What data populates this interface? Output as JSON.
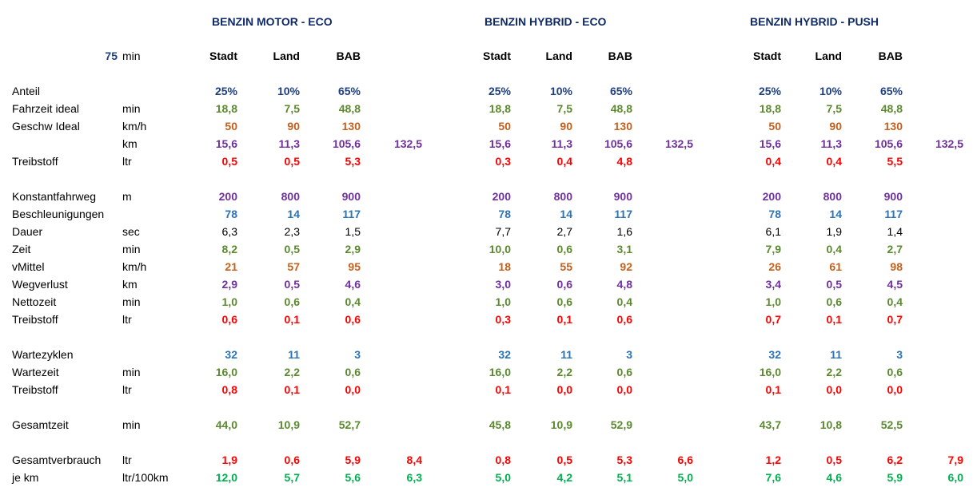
{
  "colors": {
    "navy": "#1f3f7f",
    "olive": "#5b8a2e",
    "orange": "#c4601c",
    "purple": "#7030a0",
    "red": "#ff0000",
    "blue": "#2e74b5",
    "black": "#000000",
    "green": "#00b050"
  },
  "header": {
    "minutes_value": "75",
    "minutes_unit": "min",
    "sections": [
      {
        "title": "BENZIN MOTOR - ECO",
        "cols": [
          "Stadt",
          "Land",
          "BAB"
        ]
      },
      {
        "title": "BENZIN HYBRID - ECO",
        "cols": [
          "Stadt",
          "Land",
          "BAB"
        ]
      },
      {
        "title": "BENZIN HYBRID - PUSH",
        "cols": [
          "Stadt",
          "Land",
          "BAB"
        ]
      }
    ]
  },
  "rows": [
    {
      "label": "Anteil",
      "unit": "",
      "color": "navy",
      "bold": true,
      "values": [
        [
          "25%",
          "10%",
          "65%",
          ""
        ],
        [
          "25%",
          "10%",
          "65%",
          ""
        ],
        [
          "25%",
          "10%",
          "65%",
          ""
        ]
      ]
    },
    {
      "label": "Fahrzeit ideal",
      "unit": "min",
      "color": "olive",
      "bold": true,
      "values": [
        [
          "18,8",
          "7,5",
          "48,8",
          ""
        ],
        [
          "18,8",
          "7,5",
          "48,8",
          ""
        ],
        [
          "18,8",
          "7,5",
          "48,8",
          ""
        ]
      ]
    },
    {
      "label": "Geschw Ideal",
      "unit": "km/h",
      "color": "orange",
      "bold": true,
      "values": [
        [
          "50",
          "90",
          "130",
          ""
        ],
        [
          "50",
          "90",
          "130",
          ""
        ],
        [
          "50",
          "90",
          "130",
          ""
        ]
      ]
    },
    {
      "label": "",
      "unit": "km",
      "color": "purple",
      "bold": true,
      "values": [
        [
          "15,6",
          "11,3",
          "105,6",
          "132,5"
        ],
        [
          "15,6",
          "11,3",
          "105,6",
          "132,5"
        ],
        [
          "15,6",
          "11,3",
          "105,6",
          "132,5"
        ]
      ]
    },
    {
      "label": "Treibstoff",
      "unit": "ltr",
      "color": "red",
      "bold": true,
      "values": [
        [
          "0,5",
          "0,5",
          "5,3",
          ""
        ],
        [
          "0,3",
          "0,4",
          "4,8",
          ""
        ],
        [
          "0,4",
          "0,4",
          "5,5",
          ""
        ]
      ]
    },
    {
      "label": "Konstantfahrweg",
      "unit": "m",
      "color": "purple",
      "bold": true,
      "values": [
        [
          "200",
          "800",
          "900",
          ""
        ],
        [
          "200",
          "800",
          "900",
          ""
        ],
        [
          "200",
          "800",
          "900",
          ""
        ]
      ]
    },
    {
      "label": "Beschleunigungen",
      "unit": "",
      "color": "blue",
      "bold": true,
      "values": [
        [
          "78",
          "14",
          "117",
          ""
        ],
        [
          "78",
          "14",
          "117",
          ""
        ],
        [
          "78",
          "14",
          "117",
          ""
        ]
      ]
    },
    {
      "label": "Dauer",
      "unit": "sec",
      "color": "black",
      "bold": false,
      "values": [
        [
          "6,3",
          "2,3",
          "1,5",
          ""
        ],
        [
          "7,7",
          "2,7",
          "1,6",
          ""
        ],
        [
          "6,1",
          "1,9",
          "1,4",
          ""
        ]
      ]
    },
    {
      "label": "Zeit",
      "unit": "min",
      "color": "olive",
      "bold": true,
      "values": [
        [
          "8,2",
          "0,5",
          "2,9",
          ""
        ],
        [
          "10,0",
          "0,6",
          "3,1",
          ""
        ],
        [
          "7,9",
          "0,4",
          "2,7",
          ""
        ]
      ]
    },
    {
      "label": "vMittel",
      "unit": "km/h",
      "color": "orange",
      "bold": true,
      "values": [
        [
          "21",
          "57",
          "95",
          ""
        ],
        [
          "18",
          "55",
          "92",
          ""
        ],
        [
          "26",
          "61",
          "98",
          ""
        ]
      ]
    },
    {
      "label": "Wegverlust",
      "unit": "km",
      "color": "purple",
      "bold": true,
      "values": [
        [
          "2,9",
          "0,5",
          "4,6",
          ""
        ],
        [
          "3,0",
          "0,6",
          "4,8",
          ""
        ],
        [
          "3,4",
          "0,5",
          "4,5",
          ""
        ]
      ]
    },
    {
      "label": "Nettozeit",
      "unit": "min",
      "color": "olive",
      "bold": true,
      "values": [
        [
          "1,0",
          "0,6",
          "0,4",
          ""
        ],
        [
          "1,0",
          "0,6",
          "0,4",
          ""
        ],
        [
          "1,0",
          "0,6",
          "0,4",
          ""
        ]
      ]
    },
    {
      "label": "Treibstoff",
      "unit": "ltr",
      "color": "red",
      "bold": true,
      "values": [
        [
          "0,6",
          "0,1",
          "0,6",
          ""
        ],
        [
          "0,3",
          "0,1",
          "0,6",
          ""
        ],
        [
          "0,7",
          "0,1",
          "0,7",
          ""
        ]
      ]
    },
    {
      "label": "Wartezyklen",
      "unit": "",
      "color": "blue",
      "bold": true,
      "values": [
        [
          "32",
          "11",
          "3",
          ""
        ],
        [
          "32",
          "11",
          "3",
          ""
        ],
        [
          "32",
          "11",
          "3",
          ""
        ]
      ]
    },
    {
      "label": "Wartezeit",
      "unit": "min",
      "color": "olive",
      "bold": true,
      "values": [
        [
          "16,0",
          "2,2",
          "0,6",
          ""
        ],
        [
          "16,0",
          "2,2",
          "0,6",
          ""
        ],
        [
          "16,0",
          "2,2",
          "0,6",
          ""
        ]
      ]
    },
    {
      "label": "Treibstoff",
      "unit": "ltr",
      "color": "red",
      "bold": true,
      "values": [
        [
          "0,8",
          "0,1",
          "0,0",
          ""
        ],
        [
          "0,1",
          "0,0",
          "0,0",
          ""
        ],
        [
          "0,1",
          "0,0",
          "0,0",
          ""
        ]
      ]
    },
    {
      "label": "Gesamtzeit",
      "unit": "min",
      "color": "olive",
      "bold": true,
      "values": [
        [
          "44,0",
          "10,9",
          "52,7",
          ""
        ],
        [
          "45,8",
          "10,9",
          "52,9",
          ""
        ],
        [
          "43,7",
          "10,8",
          "52,5",
          ""
        ]
      ]
    },
    {
      "label": "Gesamtverbrauch",
      "unit": "ltr",
      "color": "red",
      "bold": true,
      "values": [
        [
          "1,9",
          "0,6",
          "5,9",
          "8,4"
        ],
        [
          "0,8",
          "0,5",
          "5,3",
          "6,6"
        ],
        [
          "1,2",
          "0,5",
          "6,2",
          "7,9"
        ]
      ]
    },
    {
      "label": "je km",
      "unit": "ltr/100km",
      "color": "green",
      "bold": true,
      "values": [
        [
          "12,0",
          "5,7",
          "5,6",
          "6,3"
        ],
        [
          "5,0",
          "4,2",
          "5,1",
          "5,0"
        ],
        [
          "7,6",
          "4,6",
          "5,9",
          "6,0"
        ]
      ]
    }
  ]
}
